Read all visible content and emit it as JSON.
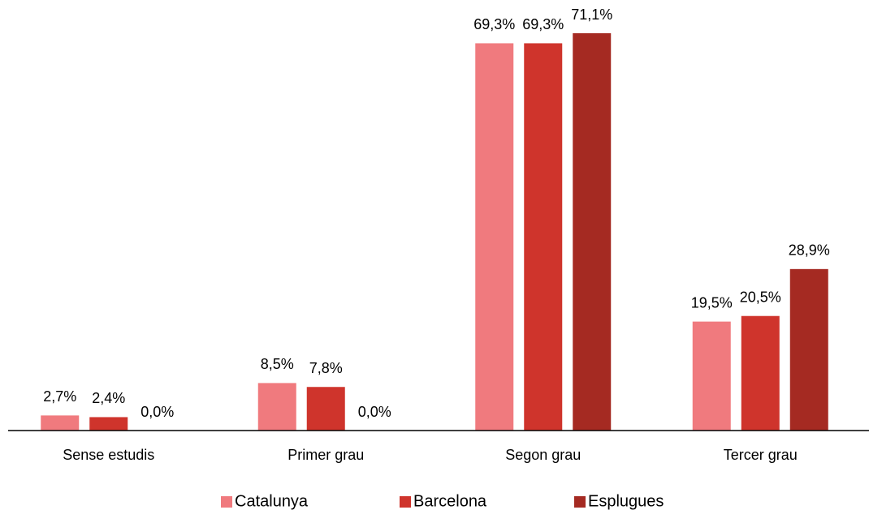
{
  "chart_data": {
    "type": "bar",
    "categories": [
      "Sense estudis",
      "Primer grau",
      "Segon grau",
      "Tercer grau"
    ],
    "series": [
      {
        "name": "Catalunya",
        "color": "#f07a7e",
        "values": [
          2.7,
          8.5,
          69.3,
          19.5
        ],
        "value_labels": [
          "2,7%",
          "8,5%",
          "69,3%",
          "19,5%"
        ]
      },
      {
        "name": "Barcelona",
        "color": "#cf342c",
        "values": [
          2.4,
          7.8,
          69.3,
          20.5
        ],
        "value_labels": [
          "2,4%",
          "7,8%",
          "69,3%",
          "20,5%"
        ]
      },
      {
        "name": "Esplugues",
        "color": "#a52a22",
        "values": [
          0.0,
          0.0,
          71.1,
          28.9
        ],
        "value_labels": [
          "0,0%",
          "0,0%",
          "71,1%",
          "28,9%"
        ]
      }
    ],
    "legend": "bottom"
  }
}
